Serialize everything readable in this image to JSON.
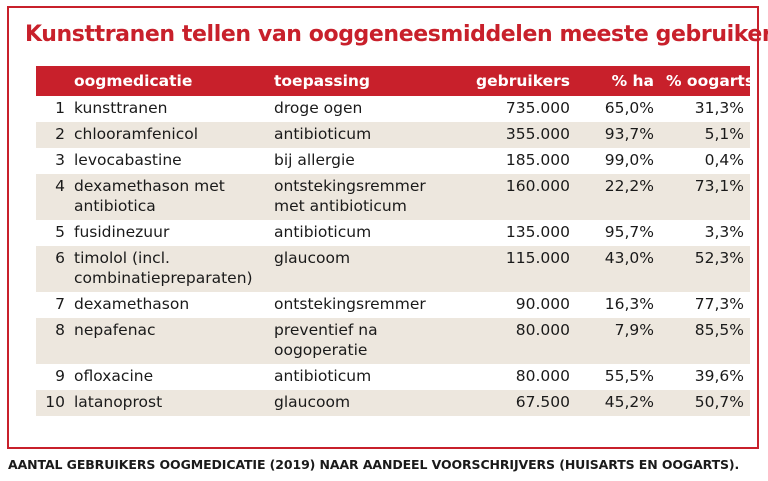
{
  "chart_data": {
    "type": "table",
    "title": "Kunsttranen tellen van ooggeneesmiddelen meeste gebruikers",
    "caption": "AANTAL GEBRUIKERS OOGMEDICATIE (2019) NAAR AANDEEL VOORSCHRIJVERS (HUISARTS EN OOGARTS).",
    "columns": [
      "",
      "oogmedicatie",
      "toepassing",
      "gebruikers",
      "% ha",
      "% oogarts"
    ],
    "rows": [
      [
        "1",
        "kunsttranen",
        "droge ogen",
        "735.000",
        "65,0%",
        "31,3%"
      ],
      [
        "2",
        "chlooramfenicol",
        "antibioticum",
        "355.000",
        "93,7%",
        "5,1%"
      ],
      [
        "3",
        "levocabastine",
        "bij allergie",
        "185.000",
        "99,0%",
        "0,4%"
      ],
      [
        "4",
        "dexamethason met antibiotica",
        "ontstekingsremmer met antibioticum",
        "160.000",
        "22,2%",
        "73,1%"
      ],
      [
        "5",
        "fusidinezuur",
        "antibioticum",
        "135.000",
        "95,7%",
        "3,3%"
      ],
      [
        "6",
        "timolol (incl. combinatiepreparaten)",
        "glaucoom",
        "115.000",
        "43,0%",
        "52,3%"
      ],
      [
        "7",
        "dexamethason",
        "ontstekingsremmer",
        "90.000",
        "16,3%",
        "77,3%"
      ],
      [
        "8",
        "nepafenac",
        "preventief na oogoperatie",
        "80.000",
        "7,9%",
        "85,5%"
      ],
      [
        "9",
        "ofloxacine",
        "antibioticum",
        "80.000",
        "55,5%",
        "39,6%"
      ],
      [
        "10",
        "latanoprost",
        "glaucoom",
        "67.500",
        "45,2%",
        "50,7%"
      ]
    ]
  },
  "colors": {
    "accent": "#c8202b",
    "row_alt": "#ede7de"
  }
}
